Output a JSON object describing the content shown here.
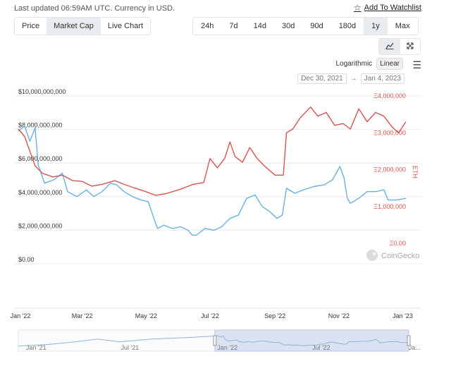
{
  "header": {
    "status_text": "Last updated 06:59AM UTC. Currency in USD.",
    "watchlist_label": "Add To Watchlist"
  },
  "chart_type_tabs": [
    {
      "label": "Price",
      "active": false
    },
    {
      "label": "Market Cap",
      "active": true
    },
    {
      "label": "Live Chart",
      "active": false
    }
  ],
  "range_tabs": [
    {
      "label": "24h",
      "active": false
    },
    {
      "label": "7d",
      "active": false
    },
    {
      "label": "14d",
      "active": false
    },
    {
      "label": "30d",
      "active": false
    },
    {
      "label": "90d",
      "active": false
    },
    {
      "label": "180d",
      "active": false
    },
    {
      "label": "1y",
      "active": true
    },
    {
      "label": "Max",
      "active": false
    }
  ],
  "view_icons": [
    "line-chart-icon",
    "expand-icon"
  ],
  "scale": {
    "logarithmic_label": "Logarithmic",
    "linear_label": "Linear",
    "active": "Linear"
  },
  "date_range": {
    "from": "Dec 30, 2021",
    "arrow": "→",
    "to": "Jan 4, 2023"
  },
  "watermark": "CoinGecko",
  "colors": {
    "market_cap": "#6ab1e3",
    "eth_ratio": "#d9534f",
    "grid": "#ececec",
    "navigator_fill": "#dbe3f3"
  },
  "chart_data": {
    "type": "line",
    "title": "",
    "x_ticks": [
      "Jan '22",
      "Mar '22",
      "May '22",
      "Jul '22",
      "Sep '22",
      "Nov '22",
      "Jan '23"
    ],
    "x_range": [
      "2021-12-30",
      "2023-01-04"
    ],
    "y_left": {
      "ticks": [
        "$0.00",
        "$2,000,000,000",
        "$4,000,000,000",
        "$6,000,000,000",
        "$8,000,000,000",
        "$10,000,000,000"
      ],
      "ylim": [
        0,
        10000000000
      ]
    },
    "y_right": {
      "label": "ETH",
      "ticks": [
        "Ξ0.00",
        "Ξ1,000,000",
        "Ξ2,000,000",
        "Ξ3,000,000",
        "Ξ4,000,000"
      ],
      "ylim": [
        0,
        4000000
      ]
    },
    "grid": true,
    "series": [
      {
        "axis": "left",
        "color": "#6ab1e3",
        "points": [
          [
            "2021-12-30",
            7900000000
          ],
          [
            "2022-01-05",
            8200000000
          ],
          [
            "2022-01-10",
            7300000000
          ],
          [
            "2022-01-15",
            8100000000
          ],
          [
            "2022-01-18",
            5900000000
          ],
          [
            "2022-01-24",
            4800000000
          ],
          [
            "2022-02-02",
            5000000000
          ],
          [
            "2022-02-10",
            5400000000
          ],
          [
            "2022-02-15",
            4300000000
          ],
          [
            "2022-02-24",
            4000000000
          ],
          [
            "2022-03-05",
            4400000000
          ],
          [
            "2022-03-12",
            4000000000
          ],
          [
            "2022-03-20",
            4300000000
          ],
          [
            "2022-03-28",
            4800000000
          ],
          [
            "2022-04-03",
            4700000000
          ],
          [
            "2022-04-10",
            4300000000
          ],
          [
            "2022-04-18",
            4000000000
          ],
          [
            "2022-04-26",
            3800000000
          ],
          [
            "2022-05-03",
            3700000000
          ],
          [
            "2022-05-09",
            2600000000
          ],
          [
            "2022-05-12",
            2100000000
          ],
          [
            "2022-05-18",
            2300000000
          ],
          [
            "2022-05-26",
            2100000000
          ],
          [
            "2022-06-03",
            2200000000
          ],
          [
            "2022-06-10",
            2000000000
          ],
          [
            "2022-06-14",
            1700000000
          ],
          [
            "2022-06-18",
            1700000000
          ],
          [
            "2022-06-26",
            2100000000
          ],
          [
            "2022-07-05",
            2000000000
          ],
          [
            "2022-07-12",
            2200000000
          ],
          [
            "2022-07-20",
            2700000000
          ],
          [
            "2022-07-28",
            2900000000
          ],
          [
            "2022-08-05",
            3900000000
          ],
          [
            "2022-08-13",
            4100000000
          ],
          [
            "2022-08-20",
            3400000000
          ],
          [
            "2022-08-27",
            3100000000
          ],
          [
            "2022-09-03",
            2700000000
          ],
          [
            "2022-09-08",
            2900000000
          ],
          [
            "2022-09-12",
            4500000000
          ],
          [
            "2022-09-20",
            4200000000
          ],
          [
            "2022-09-28",
            4400000000
          ],
          [
            "2022-10-08",
            4600000000
          ],
          [
            "2022-10-18",
            4700000000
          ],
          [
            "2022-10-26",
            5000000000
          ],
          [
            "2022-11-02",
            5800000000
          ],
          [
            "2022-11-06",
            5100000000
          ],
          [
            "2022-11-09",
            3900000000
          ],
          [
            "2022-11-12",
            3600000000
          ],
          [
            "2022-11-20",
            3900000000
          ],
          [
            "2022-11-28",
            4300000000
          ],
          [
            "2022-12-06",
            4300000000
          ],
          [
            "2022-12-14",
            4400000000
          ],
          [
            "2022-12-18",
            3800000000
          ],
          [
            "2022-12-26",
            3800000000
          ],
          [
            "2023-01-04",
            3900000000
          ]
        ]
      },
      {
        "axis": "right",
        "color": "#d9534f",
        "points": [
          [
            "2021-12-30",
            3100000
          ],
          [
            "2022-01-05",
            2900000
          ],
          [
            "2022-01-10",
            2500000
          ],
          [
            "2022-01-15",
            2100000
          ],
          [
            "2022-01-22",
            1900000
          ],
          [
            "2022-02-01",
            1800000
          ],
          [
            "2022-02-10",
            1850000
          ],
          [
            "2022-02-20",
            1700000
          ],
          [
            "2022-03-01",
            1680000
          ],
          [
            "2022-03-10",
            1550000
          ],
          [
            "2022-03-20",
            1600000
          ],
          [
            "2022-04-01",
            1700000
          ],
          [
            "2022-04-10",
            1600000
          ],
          [
            "2022-04-20",
            1500000
          ],
          [
            "2022-05-01",
            1400000
          ],
          [
            "2022-05-10",
            1300000
          ],
          [
            "2022-05-20",
            1350000
          ],
          [
            "2022-06-01",
            1450000
          ],
          [
            "2022-06-15",
            1600000
          ],
          [
            "2022-06-25",
            1650000
          ],
          [
            "2022-07-01",
            2300000
          ],
          [
            "2022-07-08",
            2050000
          ],
          [
            "2022-07-15",
            2300000
          ],
          [
            "2022-07-20",
            2750000
          ],
          [
            "2022-07-25",
            2350000
          ],
          [
            "2022-08-01",
            2200000
          ],
          [
            "2022-08-08",
            2600000
          ],
          [
            "2022-08-15",
            2300000
          ],
          [
            "2022-08-22",
            2100000
          ],
          [
            "2022-09-01",
            1850000
          ],
          [
            "2022-09-09",
            1850000
          ],
          [
            "2022-09-12",
            3000000
          ],
          [
            "2022-09-18",
            3100000
          ],
          [
            "2022-09-25",
            3400000
          ],
          [
            "2022-10-05",
            3700000
          ],
          [
            "2022-10-12",
            3450000
          ],
          [
            "2022-10-20",
            3550000
          ],
          [
            "2022-10-28",
            3200000
          ],
          [
            "2022-11-05",
            3250000
          ],
          [
            "2022-11-12",
            3100000
          ],
          [
            "2022-11-20",
            3650000
          ],
          [
            "2022-11-28",
            3300000
          ],
          [
            "2022-12-06",
            3550000
          ],
          [
            "2022-12-14",
            3450000
          ],
          [
            "2022-12-22",
            3150000
          ],
          [
            "2022-12-28",
            3000000
          ],
          [
            "2023-01-04",
            3300000
          ]
        ]
      }
    ],
    "navigator": {
      "ticks": [
        "Jan '21",
        "Jul '21",
        "Jan '22",
        "Jul '22",
        "Ja..."
      ],
      "selected_range": [
        "2021-12-30",
        "2023-01-04"
      ]
    }
  }
}
